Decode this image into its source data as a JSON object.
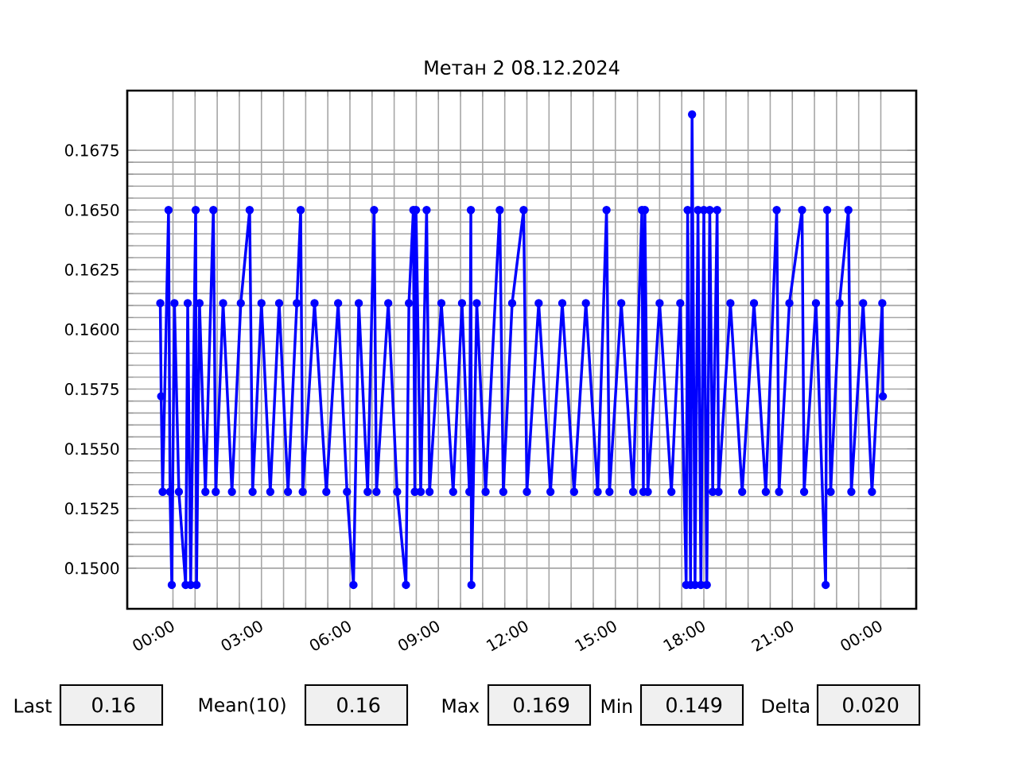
{
  "chart_data": {
    "type": "line",
    "title": "Метан 2 08.12.2024",
    "x": [
      -0.43,
      -0.4,
      -0.35,
      -0.15,
      -0.1,
      -0.04,
      0.05,
      0.2,
      0.43,
      0.5,
      0.6,
      0.77,
      0.8,
      0.9,
      1.1,
      1.37,
      1.45,
      1.7,
      2.0,
      2.3,
      2.6,
      2.7,
      3.0,
      3.3,
      3.6,
      3.9,
      4.2,
      4.33,
      4.4,
      4.8,
      5.2,
      5.6,
      5.9,
      6.12,
      6.3,
      6.6,
      6.82,
      6.9,
      7.3,
      7.6,
      7.9,
      8.0,
      8.15,
      8.2,
      8.24,
      8.4,
      8.6,
      8.7,
      9.1,
      9.5,
      9.8,
      10.05,
      10.1,
      10.12,
      10.3,
      10.6,
      11.08,
      11.2,
      11.5,
      11.89,
      12.0,
      12.4,
      12.8,
      13.2,
      13.6,
      14.0,
      14.4,
      14.7,
      14.8,
      15.2,
      15.6,
      15.9,
      15.95,
      16.0,
      16.1,
      16.5,
      16.9,
      17.2,
      17.4,
      17.45,
      17.55,
      17.6,
      17.7,
      17.8,
      17.9,
      18.0,
      18.1,
      18.2,
      18.3,
      18.45,
      18.5,
      18.9,
      19.3,
      19.7,
      20.1,
      20.47,
      20.55,
      20.9,
      21.33,
      21.4,
      21.8,
      22.13,
      22.18,
      22.3,
      22.6,
      22.9,
      23.0,
      23.4,
      23.7,
      24.05,
      24.07
    ],
    "series": [
      {
        "color": "#0000ff",
        "values": [
          0.1611,
          0.1572,
          0.1532,
          0.165,
          0.1532,
          0.1493,
          0.1611,
          0.1532,
          0.1493,
          0.1611,
          0.1493,
          0.165,
          0.1493,
          0.1611,
          0.1532,
          0.165,
          0.1532,
          0.1611,
          0.1532,
          0.1611,
          0.165,
          0.1532,
          0.1611,
          0.1532,
          0.1611,
          0.1532,
          0.1611,
          0.165,
          0.1532,
          0.1611,
          0.1532,
          0.1611,
          0.1532,
          0.1493,
          0.1611,
          0.1532,
          0.165,
          0.1532,
          0.1611,
          0.1532,
          0.1493,
          0.1611,
          0.165,
          0.1532,
          0.165,
          0.1532,
          0.165,
          0.1532,
          0.1611,
          0.1532,
          0.1611,
          0.1532,
          0.165,
          0.1493,
          0.1611,
          0.1532,
          0.165,
          0.1532,
          0.1611,
          0.165,
          0.1532,
          0.1611,
          0.1532,
          0.1611,
          0.1532,
          0.1611,
          0.1532,
          0.165,
          0.1532,
          0.1611,
          0.1532,
          0.165,
          0.1532,
          0.165,
          0.1532,
          0.1611,
          0.1532,
          0.1611,
          0.1493,
          0.165,
          0.1493,
          0.169,
          0.1493,
          0.165,
          0.1493,
          0.165,
          0.1493,
          0.165,
          0.1532,
          0.165,
          0.1532,
          0.1611,
          0.1532,
          0.1611,
          0.1532,
          0.165,
          0.1532,
          0.1611,
          0.165,
          0.1532,
          0.1611,
          0.1493,
          0.165,
          0.1532,
          0.1611,
          0.165,
          0.1532,
          0.1611,
          0.1532,
          0.1611,
          0.1572
        ]
      }
    ],
    "xlim": [
      -1.55,
      25.2
    ],
    "xticks": [
      {
        "value": 0,
        "label": "00:00"
      },
      {
        "value": 3,
        "label": "03:00"
      },
      {
        "value": 6,
        "label": "06:00"
      },
      {
        "value": 9,
        "label": "09:00"
      },
      {
        "value": 12,
        "label": "12:00"
      },
      {
        "value": 15,
        "label": "15:00"
      },
      {
        "value": 18,
        "label": "18:00"
      },
      {
        "value": 21,
        "label": "21:00"
      },
      {
        "value": 24,
        "label": "00:00"
      }
    ],
    "ylim": [
      0.1483,
      0.17
    ],
    "yticks": [
      {
        "value": 0.15,
        "label": "0.1500"
      },
      {
        "value": 0.1525,
        "label": "0.1525"
      },
      {
        "value": 0.155,
        "label": "0.1550"
      },
      {
        "value": 0.1575,
        "label": "0.1575"
      },
      {
        "value": 0.16,
        "label": "0.1600"
      },
      {
        "value": 0.1625,
        "label": "0.1625"
      },
      {
        "value": 0.165,
        "label": "0.1650"
      },
      {
        "value": 0.1675,
        "label": "0.1675"
      }
    ],
    "grid": true,
    "marker": "circle",
    "line_style": "solid",
    "annotations": [
      "Last",
      "0.16",
      "Mean(10)",
      "0.16",
      "Max",
      "0.169",
      "Min",
      "0.149",
      "Delta",
      "0.020"
    ]
  }
}
